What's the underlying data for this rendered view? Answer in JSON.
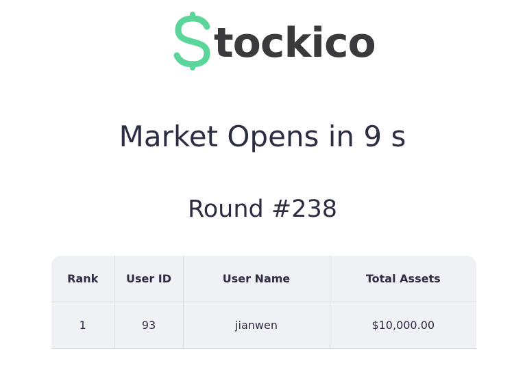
{
  "brand": {
    "logo_text": "tockico",
    "logo_color": "#5ad69a",
    "text_color": "#3a3a3c"
  },
  "status": {
    "countdown": "Market Opens in 9 s",
    "round": "Round #238"
  },
  "leaderboard": {
    "columns": [
      "Rank",
      "User ID",
      "User Name",
      "Total Assets"
    ],
    "rows": [
      {
        "rank": "1",
        "user_id": "93",
        "user_name": "jianwen",
        "total_assets": "$10,000.00"
      }
    ]
  }
}
